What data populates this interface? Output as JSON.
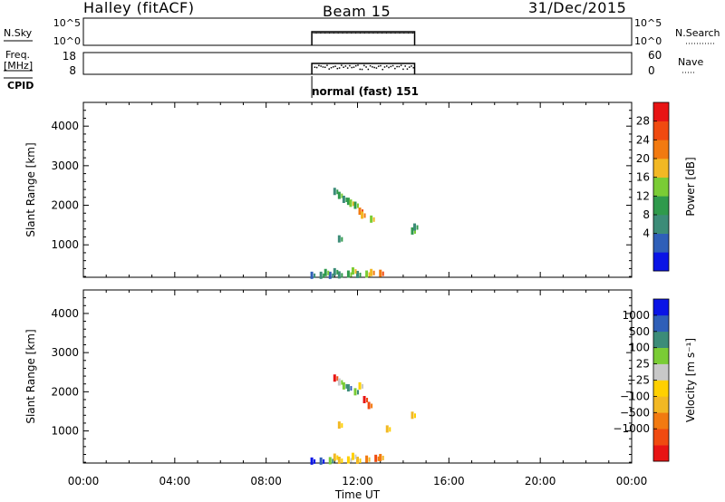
{
  "header": {
    "station": "Halley (fitACF)",
    "beam": "Beam 15",
    "date": "31/Dec/2015"
  },
  "small_panels": {
    "nsky": {
      "label": "N.Sky",
      "ticks": [
        "10^5",
        "10^0"
      ],
      "right_label": "N.Search",
      "right_ticks": [
        "10^5",
        "10^0"
      ]
    },
    "freq": {
      "label_top": "Freq.",
      "label_bottom": "[MHz]",
      "ticks": [
        "18",
        "8"
      ],
      "right_label": "Nave",
      "right_ticks": [
        "60",
        "0"
      ]
    },
    "cpid": {
      "label": "CPID",
      "value": "normal (fast) 151"
    }
  },
  "chart_data": [
    {
      "type": "heatmap",
      "panel": "power",
      "ylabel": "Slant Range [km]",
      "yticks": [
        1000,
        2000,
        3000,
        4000
      ],
      "ylim": [
        180,
        4600
      ],
      "xlim": [
        0,
        24
      ],
      "colorbar": {
        "label": "Power [dB]",
        "ticks": [
          "28",
          "24",
          "20",
          "16",
          "12",
          "8",
          "4"
        ],
        "colors_bottom_to_top": [
          "#0a14e6",
          "#2f5fb8",
          "#3c8c78",
          "#2f9a4c",
          "#7acc35",
          "#f2b824",
          "#f27a10",
          "#f04a10",
          "#e81414"
        ]
      },
      "points": [
        [
          11.0,
          2350,
          2
        ],
        [
          11.2,
          2250,
          3
        ],
        [
          11.4,
          2150,
          2
        ],
        [
          11.6,
          2100,
          3
        ],
        [
          11.7,
          2050,
          4
        ],
        [
          11.9,
          2000,
          3
        ],
        [
          12.1,
          1850,
          6
        ],
        [
          12.2,
          1750,
          5
        ],
        [
          12.6,
          1650,
          4
        ],
        [
          14.4,
          1350,
          3
        ],
        [
          14.5,
          1450,
          2
        ],
        [
          11.2,
          1150,
          2
        ],
        [
          10.0,
          230,
          1
        ],
        [
          10.4,
          230,
          2
        ],
        [
          10.8,
          230,
          1
        ],
        [
          11.2,
          240,
          2
        ],
        [
          11.6,
          260,
          3
        ],
        [
          12.0,
          250,
          2
        ],
        [
          12.4,
          260,
          4
        ],
        [
          12.6,
          300,
          5
        ],
        [
          13.0,
          280,
          6
        ],
        [
          10.6,
          300,
          3
        ],
        [
          11.0,
          320,
          2
        ],
        [
          11.8,
          340,
          4
        ]
      ]
    },
    {
      "type": "heatmap",
      "panel": "velocity",
      "ylabel": "Slant Range [km]",
      "yticks": [
        1000,
        2000,
        3000,
        4000
      ],
      "ylim": [
        180,
        4600
      ],
      "xlim": [
        0,
        24
      ],
      "xlabel": "Time UT",
      "xticks": [
        "00:00",
        "04:00",
        "08:00",
        "12:00",
        "16:00",
        "20:00",
        "00:00"
      ],
      "colorbar": {
        "label": "Velocity [m s⁻¹]",
        "ticks": [
          "1000",
          "500",
          "100",
          "25",
          "−25",
          "−100",
          "−500",
          "−1000"
        ],
        "colors_bottom_to_top": [
          "#e81414",
          "#f04a10",
          "#f27a10",
          "#f2b824",
          "#ffd000",
          "#c8c8c8",
          "#7acc35",
          "#3c8c78",
          "#2f5fb8",
          "#0a14e6"
        ]
      },
      "points": [
        [
          11.0,
          2350,
          0
        ],
        [
          11.2,
          2250,
          5
        ],
        [
          11.4,
          2150,
          6
        ],
        [
          11.6,
          2100,
          7
        ],
        [
          11.9,
          2000,
          6
        ],
        [
          12.1,
          2150,
          4
        ],
        [
          12.3,
          1800,
          0
        ],
        [
          12.5,
          1650,
          1
        ],
        [
          14.4,
          1400,
          3
        ],
        [
          13.3,
          1050,
          3
        ],
        [
          11.2,
          1150,
          3
        ],
        [
          10.0,
          230,
          9
        ],
        [
          10.4,
          230,
          8
        ],
        [
          10.8,
          240,
          6
        ],
        [
          11.2,
          250,
          3
        ],
        [
          11.6,
          260,
          4
        ],
        [
          12.0,
          250,
          3
        ],
        [
          12.4,
          280,
          2
        ],
        [
          12.8,
          300,
          1
        ],
        [
          13.0,
          320,
          2
        ],
        [
          11.0,
          330,
          3
        ],
        [
          11.8,
          350,
          4
        ]
      ]
    }
  ]
}
